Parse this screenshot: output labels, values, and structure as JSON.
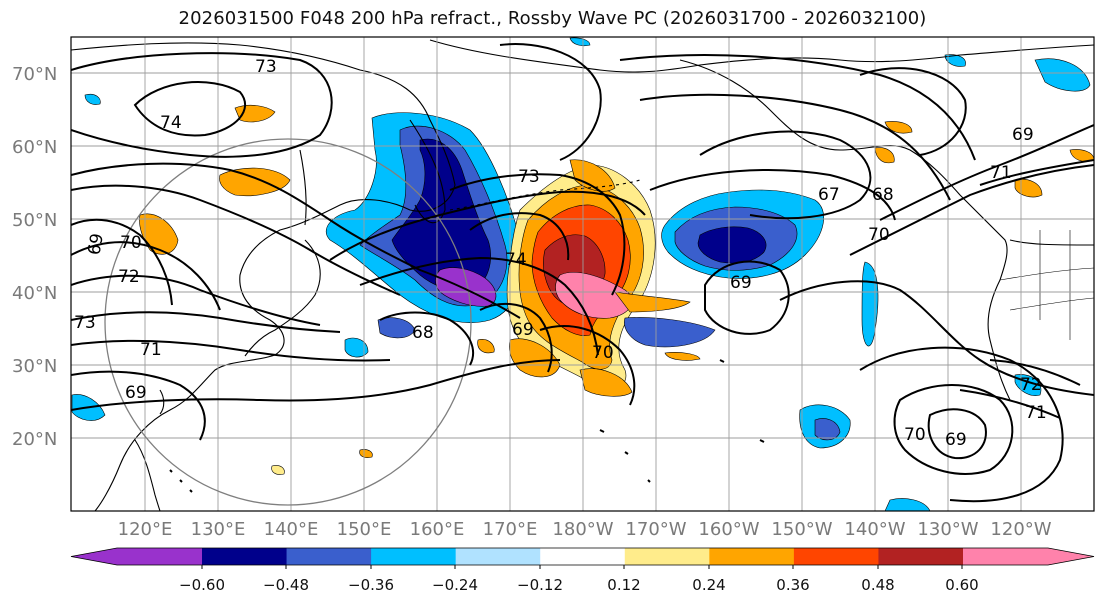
{
  "title": "2026031500 F048 200 hPa refract., Rossby Wave PC (2026031700 - 2026032100)",
  "lat_labels": [
    "70°N",
    "60°N",
    "50°N",
    "40°N",
    "30°N",
    "20°N"
  ],
  "lon_labels": [
    "120°E",
    "130°E",
    "140°E",
    "150°E",
    "160°E",
    "170°E",
    "180°W",
    "170°W",
    "160°W",
    "150°W",
    "140°W",
    "130°W",
    "120°W"
  ],
  "colorbar": {
    "colors": [
      "#9932cc",
      "#00008b",
      "#3a5fcd",
      "#00bfff",
      "#b0e2ff",
      "#ffffff",
      "#ffec8b",
      "#ffa500",
      "#ff4500",
      "#b22222",
      "#ff82ab"
    ],
    "tick_labels": [
      "−0.60",
      "−0.48",
      "−0.36",
      "−0.24",
      "−0.12",
      "0.12",
      "0.24",
      "0.36",
      "0.48",
      "0.60"
    ]
  },
  "contour_labels": [
    "73",
    "74",
    "69",
    "70",
    "72",
    "73",
    "71",
    "69",
    "68",
    "73",
    "74",
    "69",
    "70",
    "67",
    "68",
    "70",
    "69",
    "69",
    "71",
    "72",
    "71",
    "70",
    "69"
  ],
  "colors": {
    "contour": "#000000",
    "gridline": "#9e9e9e",
    "coast": "#000000",
    "circle": "#7f7f7f"
  }
}
